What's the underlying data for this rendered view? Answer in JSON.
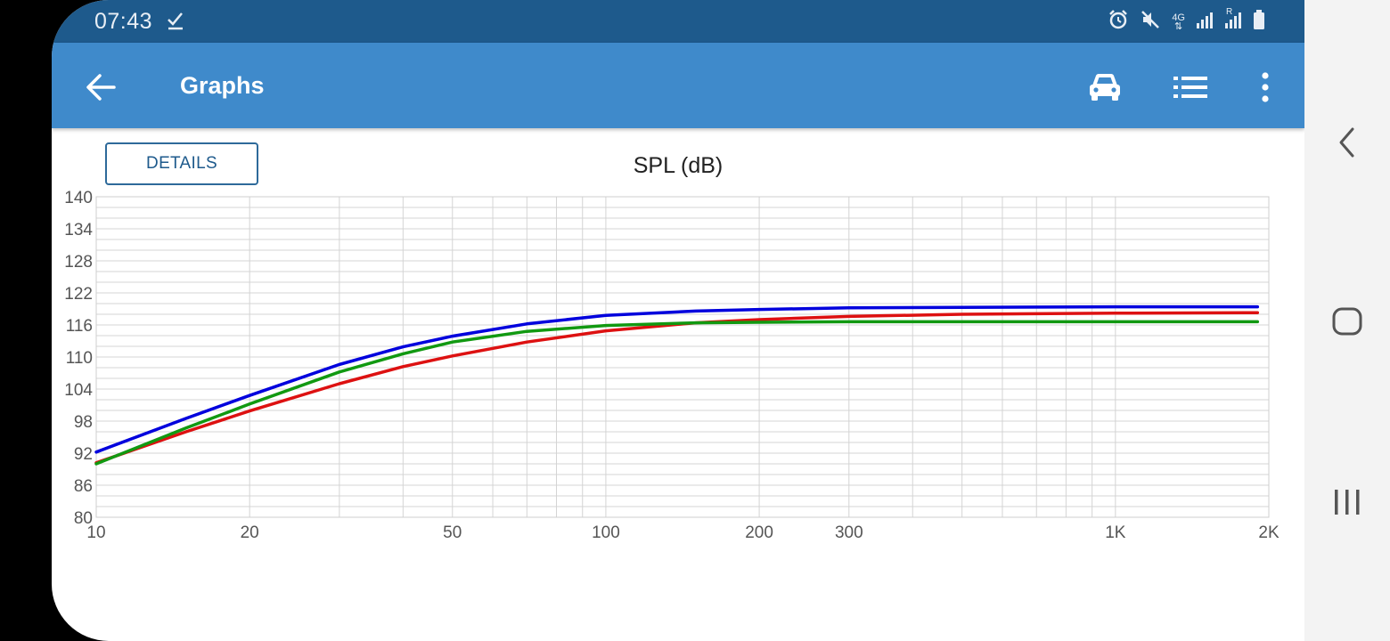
{
  "status_bar": {
    "time": "07:43",
    "icons": [
      "check-icon",
      "alarm-icon",
      "mute-icon",
      "4g-icon",
      "signal-icon",
      "signal-roaming-icon",
      "battery-icon"
    ],
    "network_label": "4G",
    "roaming_label": "R"
  },
  "app_bar": {
    "title": "Graphs",
    "background": "#3f8acb",
    "actions": [
      "car-icon",
      "list-icon",
      "more-vert-icon"
    ]
  },
  "details_button": {
    "label": "DETAILS"
  },
  "chart_data": {
    "type": "line",
    "title": "SPL (dB)",
    "xlabel": "",
    "ylabel": "",
    "x_scale": "log",
    "xlim": [
      10,
      2000
    ],
    "ylim": [
      80,
      140
    ],
    "x_ticks": [
      {
        "value": 10,
        "label": "10"
      },
      {
        "value": 20,
        "label": "20"
      },
      {
        "value": 50,
        "label": "50"
      },
      {
        "value": 100,
        "label": "100"
      },
      {
        "value": 200,
        "label": "200"
      },
      {
        "value": 300,
        "label": "300"
      },
      {
        "value": 1000,
        "label": "1K"
      },
      {
        "value": 2000,
        "label": "2K"
      }
    ],
    "y_ticks": [
      {
        "value": 80,
        "label": "80"
      },
      {
        "value": 86,
        "label": "86"
      },
      {
        "value": 92,
        "label": "92"
      },
      {
        "value": 98,
        "label": "98"
      },
      {
        "value": 104,
        "label": "104"
      },
      {
        "value": 110,
        "label": "110"
      },
      {
        "value": 116,
        "label": "116"
      },
      {
        "value": 122,
        "label": "122"
      },
      {
        "value": 128,
        "label": "128"
      },
      {
        "value": 134,
        "label": "134"
      },
      {
        "value": 140,
        "label": "140"
      }
    ],
    "grid": true,
    "legend": "none",
    "x": [
      10,
      15,
      20,
      30,
      40,
      50,
      70,
      100,
      150,
      200,
      300,
      500,
      1000,
      1900
    ],
    "series": [
      {
        "color": "#0000dd",
        "values": [
          92.2,
          98.5,
          102.8,
          108.6,
          111.9,
          113.9,
          116.2,
          117.8,
          118.6,
          118.9,
          119.2,
          119.3,
          119.4,
          119.4
        ]
      },
      {
        "color": "#dd1111",
        "values": [
          90.2,
          96.0,
          99.9,
          105.0,
          108.2,
          110.2,
          112.8,
          114.9,
          116.4,
          117.0,
          117.6,
          118.0,
          118.2,
          118.3
        ]
      },
      {
        "color": "#119911",
        "values": [
          90.0,
          96.7,
          101.2,
          107.2,
          110.6,
          112.8,
          114.8,
          115.9,
          116.4,
          116.5,
          116.6,
          116.6,
          116.6,
          116.6
        ]
      }
    ]
  },
  "nav_bar": {
    "buttons": [
      "back-nav-icon",
      "home-nav-icon",
      "recents-nav-icon"
    ]
  }
}
